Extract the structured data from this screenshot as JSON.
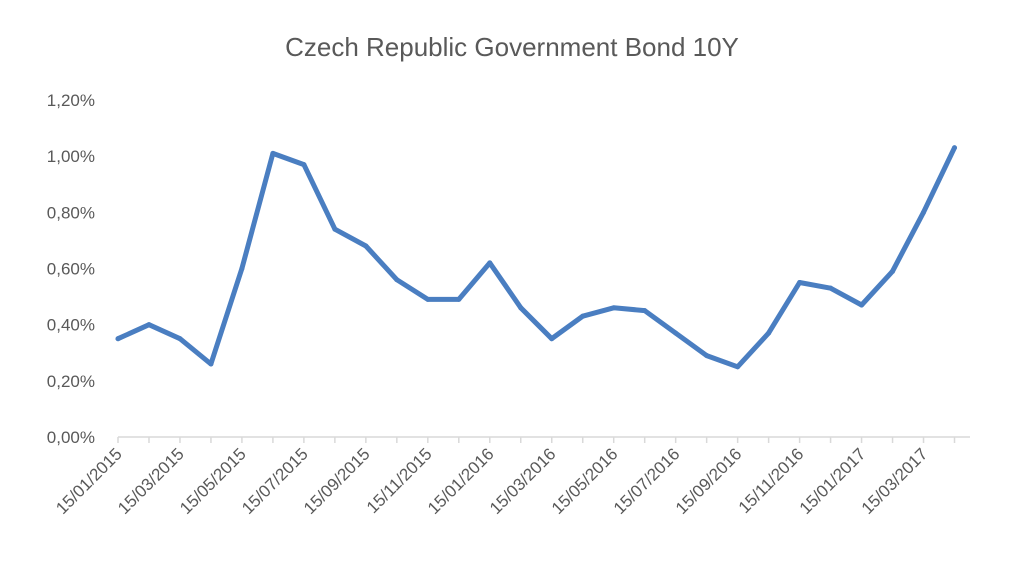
{
  "chart_data": {
    "type": "line",
    "title": "Czech Republic Government Bond 10Y",
    "xlabel": "",
    "ylabel": "",
    "ylim": [
      0,
      1.2
    ],
    "y_ticks": [
      0,
      0.2,
      0.4,
      0.6,
      0.8,
      1.0,
      1.2
    ],
    "y_tick_labels": [
      "0,00%",
      "0,20%",
      "0,40%",
      "0,60%",
      "0,80%",
      "1,00%",
      "1,20%"
    ],
    "x_tick_labels": [
      "15/01/2015",
      "15/03/2015",
      "15/05/2015",
      "15/07/2015",
      "15/09/2015",
      "15/11/2015",
      "15/01/2016",
      "15/03/2016",
      "15/05/2016",
      "15/07/2016",
      "15/09/2016",
      "15/11/2016",
      "15/01/2017",
      "15/03/2017"
    ],
    "grid": false,
    "legend": "none",
    "line_color": "#4a7ec1",
    "series": [
      {
        "values": [
          0.35,
          0.4,
          0.35,
          0.26,
          0.6,
          1.01,
          0.97,
          0.74,
          0.68,
          0.56,
          0.49,
          0.49,
          0.62,
          0.46,
          0.35,
          0.43,
          0.46,
          0.45,
          0.37,
          0.29,
          0.25,
          0.37,
          0.55,
          0.53,
          0.47,
          0.59,
          0.8,
          1.03
        ]
      }
    ]
  }
}
